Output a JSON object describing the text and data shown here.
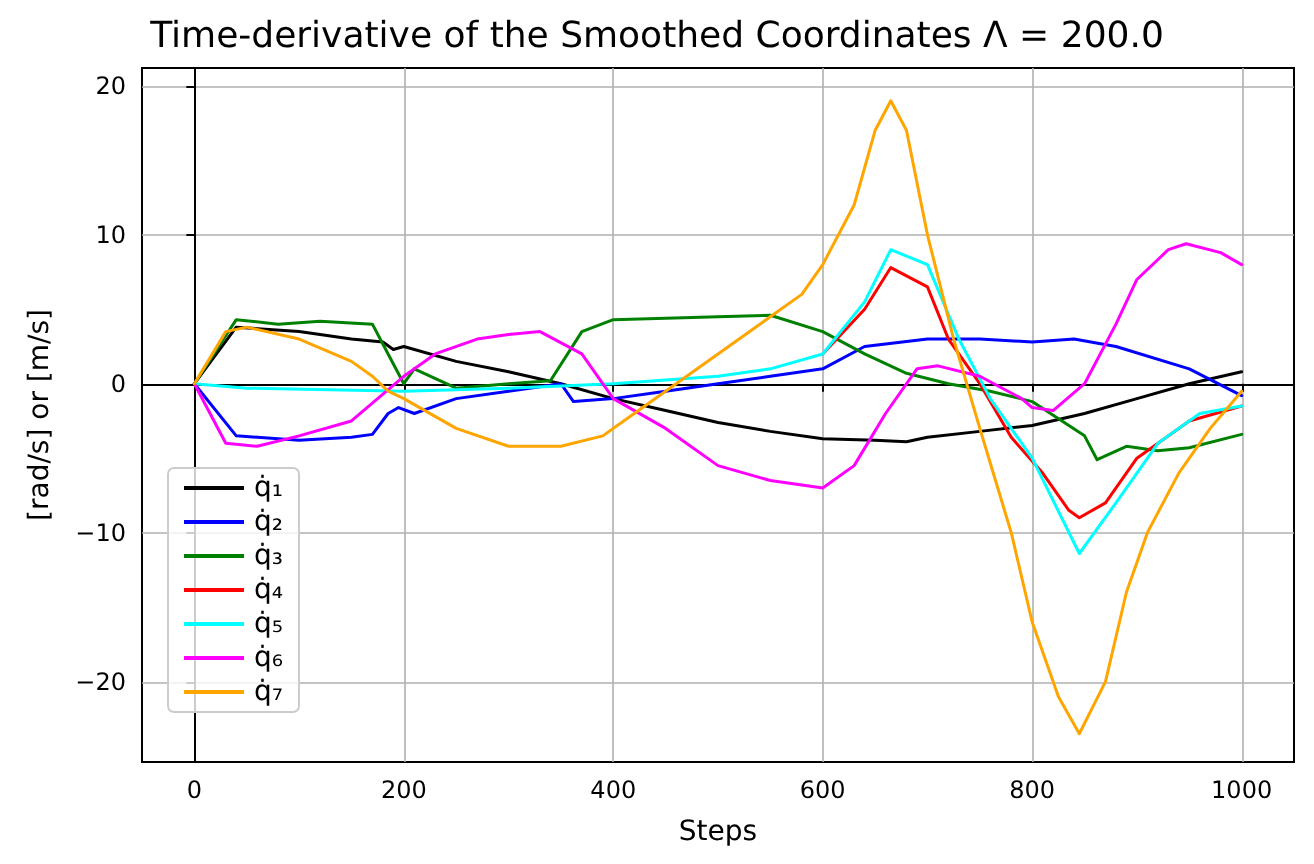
{
  "chart_data": {
    "type": "line",
    "title": "Time-derivative of the Smoothed Coordinates Λ = 200.0",
    "xlabel": "Steps",
    "ylabel": "[rad/s] or [m/s]",
    "xlim": [
      -50,
      1050
    ],
    "ylim": [
      -25.4,
      21.2
    ],
    "xticks": [
      0,
      200,
      400,
      600,
      800,
      1000
    ],
    "yticks": [
      {
        "value": -20,
        "label": "−20"
      },
      {
        "value": -10,
        "label": "−10"
      },
      0,
      10,
      20
    ],
    "grid": true,
    "legend": "left",
    "marker": "none",
    "line_style": "solid",
    "series": [
      {
        "name": "q̇₁",
        "color": "#000000",
        "x": [
          0,
          40,
          100,
          150,
          180,
          190,
          200,
          250,
          300,
          350,
          400,
          450,
          500,
          550,
          600,
          650,
          680,
          700,
          750,
          800,
          850,
          900,
          950,
          1000
        ],
        "values": [
          0,
          3.8,
          3.5,
          3,
          2.8,
          2.3,
          2.5,
          1.5,
          0.8,
          0,
          -1,
          -1.8,
          -2.6,
          -3.2,
          -3.7,
          -3.8,
          -3.9,
          -3.6,
          -3.2,
          -2.8,
          -2,
          -1,
          0,
          0.8
        ]
      },
      {
        "name": "q̇₂",
        "color": "#0000ff",
        "x": [
          0,
          40,
          100,
          150,
          170,
          185,
          195,
          210,
          250,
          300,
          350,
          362,
          400,
          450,
          500,
          550,
          600,
          640,
          700,
          750,
          800,
          840,
          880,
          950,
          1000
        ],
        "values": [
          0,
          -3.5,
          -3.8,
          -3.6,
          -3.4,
          -2,
          -1.6,
          -2,
          -1,
          -0.5,
          0,
          -1.2,
          -1,
          -0.5,
          0,
          0.5,
          1,
          2.5,
          3,
          3,
          2.8,
          3,
          2.5,
          1,
          -0.8
        ]
      },
      {
        "name": "q̇₃",
        "color": "#008000",
        "x": [
          0,
          40,
          80,
          120,
          170,
          185,
          200,
          210,
          250,
          300,
          340,
          370,
          400,
          500,
          550,
          600,
          640,
          680,
          720,
          760,
          800,
          850,
          862,
          890,
          920,
          950,
          1000
        ],
        "values": [
          0,
          4.3,
          4,
          4.2,
          4,
          2,
          0,
          1,
          -0.3,
          0,
          0.2,
          3.5,
          4.3,
          4.5,
          4.6,
          3.5,
          2,
          0.7,
          0,
          -0.5,
          -1.2,
          -3.5,
          -5.1,
          -4.2,
          -4.5,
          -4.3,
          -3.4
        ]
      },
      {
        "name": "q̇₄",
        "color": "#ff0000",
        "x": [
          600,
          640,
          665,
          700,
          720,
          750,
          780,
          810,
          835,
          845,
          870,
          900,
          950,
          1000
        ],
        "values": [
          2,
          5,
          7.8,
          6.5,
          3,
          0,
          -3.6,
          -6,
          -8.5,
          -9,
          -8,
          -5,
          -2.5,
          -1.5
        ]
      },
      {
        "name": "q̇₅",
        "color": "#00ffff",
        "x": [
          0,
          50,
          200,
          300,
          400,
          500,
          550,
          600,
          640,
          665,
          700,
          730,
          760,
          800,
          845,
          880,
          920,
          960,
          1000
        ],
        "values": [
          0,
          -0.3,
          -0.5,
          -0.3,
          0,
          0.5,
          1,
          2,
          5.5,
          9,
          8,
          3,
          -1,
          -5,
          -11.4,
          -8,
          -4,
          -2,
          -1.5
        ]
      },
      {
        "name": "q̇₆",
        "color": "#ff00ff",
        "x": [
          0,
          30,
          60,
          100,
          150,
          200,
          230,
          270,
          300,
          330,
          370,
          400,
          450,
          500,
          550,
          600,
          630,
          660,
          690,
          710,
          750,
          790,
          800,
          820,
          850,
          880,
          900,
          930,
          947,
          980,
          1000
        ],
        "values": [
          0,
          -4,
          -4.2,
          -3.5,
          -2.5,
          0.5,
          2,
          3,
          3.3,
          3.5,
          2,
          -1,
          -3,
          -5.5,
          -6.5,
          -7,
          -5.5,
          -2,
          1,
          1.2,
          0.5,
          -1,
          -1.6,
          -1.8,
          0,
          4,
          7,
          9,
          9.4,
          8.8,
          8
        ]
      },
      {
        "name": "q̇₇",
        "color": "#ffa500",
        "x": [
          0,
          30,
          50,
          100,
          150,
          170,
          185,
          200,
          250,
          300,
          350,
          390,
          420,
          460,
          500,
          540,
          580,
          600,
          630,
          650,
          665,
          680,
          700,
          725,
          750,
          780,
          800,
          825,
          845,
          870,
          890,
          910,
          940,
          970,
          1000
        ],
        "values": [
          0,
          3.5,
          3.8,
          3,
          1.5,
          0.5,
          -0.5,
          -1,
          -3,
          -4.2,
          -4.2,
          -3.5,
          -2,
          0,
          2,
          4,
          6,
          8,
          12,
          17,
          19,
          17,
          10,
          3,
          -3,
          -10,
          -16,
          -21,
          -23.5,
          -20,
          -14,
          -10,
          -6,
          -3,
          -0.5
        ]
      }
    ]
  }
}
